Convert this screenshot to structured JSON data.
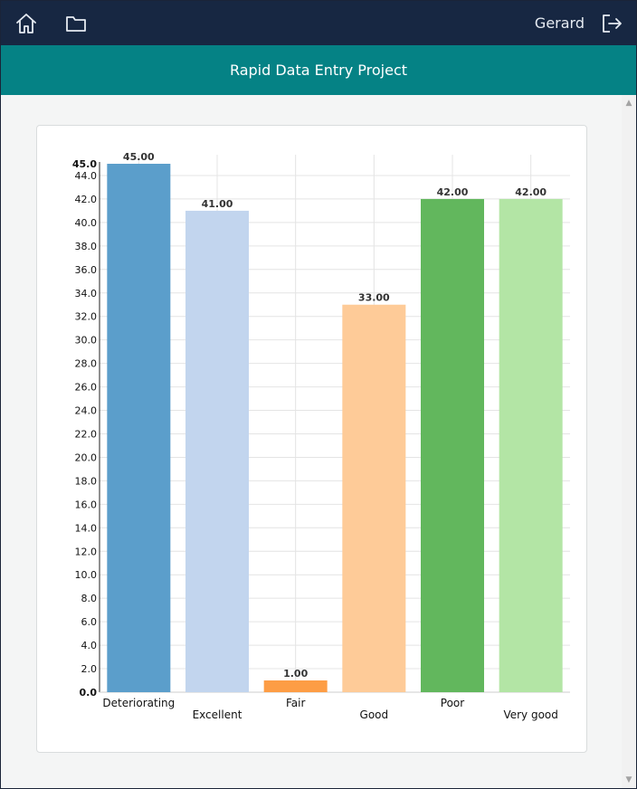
{
  "header": {
    "username": "Gerard",
    "icons": [
      "home-icon",
      "folder-icon",
      "logout-icon"
    ]
  },
  "titlebar": {
    "title": "Rapid Data Entry Project"
  },
  "chart_data": {
    "type": "bar",
    "categories": [
      "Deteriorating",
      "Excellent",
      "Fair",
      "Good",
      "Poor",
      "Very good"
    ],
    "values": [
      45,
      41,
      1,
      33,
      42,
      42
    ],
    "value_labels": [
      "45.00",
      "41.00",
      "1.00",
      "33.00",
      "42.00",
      "42.00"
    ],
    "colors": [
      "#5b9ecb",
      "#c2d5ee",
      "#fd9d45",
      "#fecb98",
      "#62b75d",
      "#b3e5a5"
    ],
    "yticks": [
      0,
      2,
      4,
      6,
      8,
      10,
      12,
      14,
      16,
      18,
      20,
      22,
      24,
      26,
      28,
      30,
      32,
      34,
      36,
      38,
      40,
      42,
      44
    ],
    "ytick_labels": [
      "0.0",
      "2.0",
      "4.0",
      "6.0",
      "8.0",
      "10.0",
      "12.0",
      "14.0",
      "16.0",
      "18.0",
      "20.0",
      "22.0",
      "24.0",
      "26.0",
      "28.0",
      "30.0",
      "32.0",
      "34.0",
      "36.0",
      "38.0",
      "40.0",
      "42.0",
      "44.0"
    ],
    "ymax_label": "45.0",
    "ymin_label": "0.0",
    "ylim": [
      0,
      45
    ],
    "grid": true,
    "title": "",
    "xlabel": "",
    "ylabel": ""
  }
}
